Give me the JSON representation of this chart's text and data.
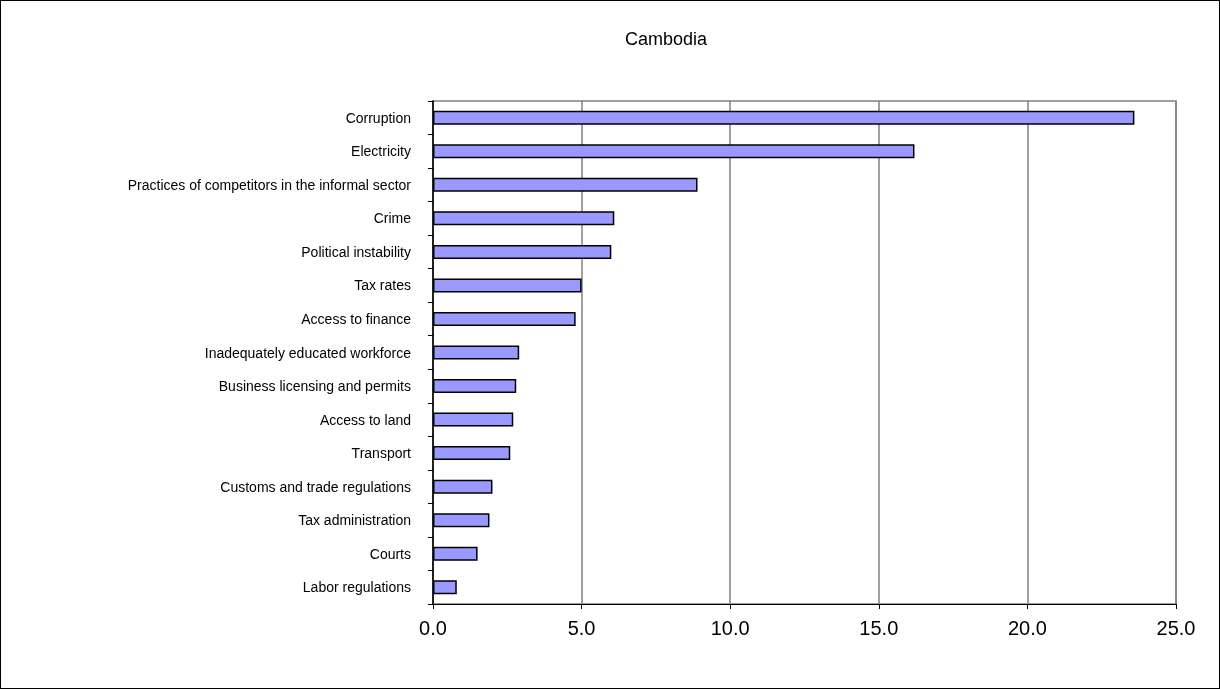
{
  "chart_data": {
    "type": "bar",
    "orientation": "horizontal",
    "title": "Cambodia",
    "categories": [
      "Corruption",
      "Electricity",
      "Practices of competitors in the informal sector",
      "Crime",
      "Political instability",
      "Tax rates",
      "Access to finance",
      "Inadequately educated workforce",
      "Business licensing and permits",
      "Access to land",
      "Transport",
      "Customs and trade regulations",
      "Tax administration",
      "Courts",
      "Labor regulations"
    ],
    "values": [
      23.6,
      16.2,
      8.9,
      6.1,
      6.0,
      5.0,
      4.8,
      2.9,
      2.8,
      2.7,
      2.6,
      2.0,
      1.9,
      1.5,
      0.8
    ],
    "color": "#9999ff",
    "xlim": [
      0,
      25
    ],
    "xticks": [
      {
        "value": 0,
        "label": "0.0"
      },
      {
        "value": 5,
        "label": "5.0"
      },
      {
        "value": 10,
        "label": "10.0"
      },
      {
        "value": 15,
        "label": "15.0"
      },
      {
        "value": 20,
        "label": "20.0"
      },
      {
        "value": 25,
        "label": "25.0"
      }
    ],
    "grid": "x"
  }
}
